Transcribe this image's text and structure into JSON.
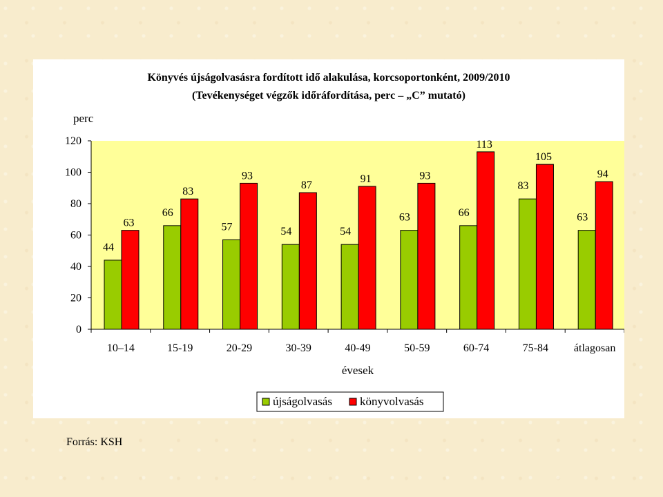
{
  "chart_data": {
    "type": "bar",
    "title": "Könyvés újságolvasásra fordított idő alakulása, korcsoportonként, 2009/2010",
    "subtitle": "(Tevékenységet végzők időráfordítása, perc – „C” mutató)",
    "ylabel": "perc",
    "xlabel": "évesek",
    "ylim": [
      0,
      120
    ],
    "yticks": [
      0,
      20,
      40,
      60,
      80,
      100,
      120
    ],
    "categories": [
      "10–14",
      "15-19",
      "20-29",
      "30-39",
      "40-49",
      "50-59",
      "60-74",
      "75-84",
      "átlagosan"
    ],
    "series": [
      {
        "name": "újságolvasás",
        "color": "#99cc00",
        "values": [
          44,
          66,
          57,
          54,
          54,
          63,
          66,
          83,
          63
        ]
      },
      {
        "name": "könyvolvasás",
        "color": "#ff0000",
        "values": [
          63,
          83,
          93,
          87,
          91,
          93,
          113,
          105,
          94
        ]
      }
    ],
    "plot_background": "#ffff99",
    "legend_position": "bottom",
    "grid": false
  },
  "source": "Forrás: KSH"
}
